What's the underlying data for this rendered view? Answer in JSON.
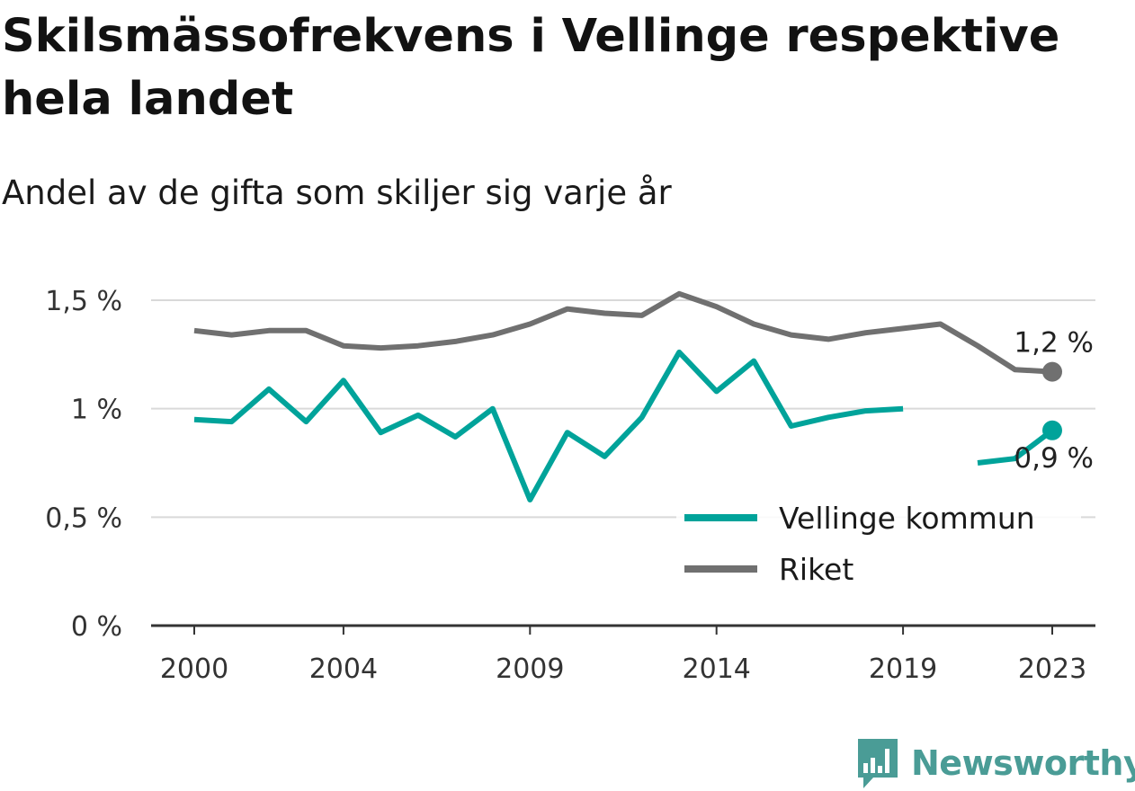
{
  "title": "Skilsmässofrekvens i Vellinge respektive hela landet",
  "subtitle": "Andel av de gifta som skiljer sig varje år",
  "brand": {
    "name": "Newsworthy",
    "color": "#4a9c96",
    "icon": "bar-chart-speech-bubble-icon"
  },
  "chart_data": {
    "type": "line",
    "x": [
      2000,
      2001,
      2002,
      2003,
      2004,
      2005,
      2006,
      2007,
      2008,
      2009,
      2010,
      2011,
      2012,
      2013,
      2014,
      2015,
      2016,
      2017,
      2018,
      2019,
      2020,
      2021,
      2022,
      2023
    ],
    "x_ticks": [
      2000,
      2004,
      2009,
      2014,
      2019,
      2023
    ],
    "x_tick_labels": [
      "2000",
      "2004",
      "2009",
      "2014",
      "2019",
      "2023"
    ],
    "ylim": [
      0,
      1.5
    ],
    "y_ticks": [
      0,
      0.5,
      1,
      1.5
    ],
    "y_tick_labels": [
      "0 %",
      "0,5 %",
      "1 %",
      "1,5 %"
    ],
    "grid": true,
    "legend_position": "bottom-right",
    "series": [
      {
        "name": "Vellinge kommun",
        "color": "#00a39a",
        "values": [
          0.95,
          0.94,
          1.09,
          0.94,
          1.13,
          0.89,
          0.97,
          0.87,
          1.0,
          0.58,
          0.89,
          0.78,
          0.96,
          1.26,
          1.08,
          1.22,
          0.92,
          0.96,
          0.99,
          1.0,
          null,
          0.75,
          0.77,
          0.9
        ],
        "interpolated_gap": [
          20
        ],
        "end_label": "0,9 %"
      },
      {
        "name": "Riket",
        "color": "#707070",
        "values": [
          1.36,
          1.34,
          1.36,
          1.36,
          1.29,
          1.28,
          1.29,
          1.31,
          1.34,
          1.39,
          1.46,
          1.44,
          1.43,
          1.53,
          1.47,
          1.39,
          1.34,
          1.32,
          1.35,
          1.37,
          1.39,
          1.29,
          1.18,
          1.17
        ],
        "end_label": "1,2 %"
      }
    ]
  }
}
